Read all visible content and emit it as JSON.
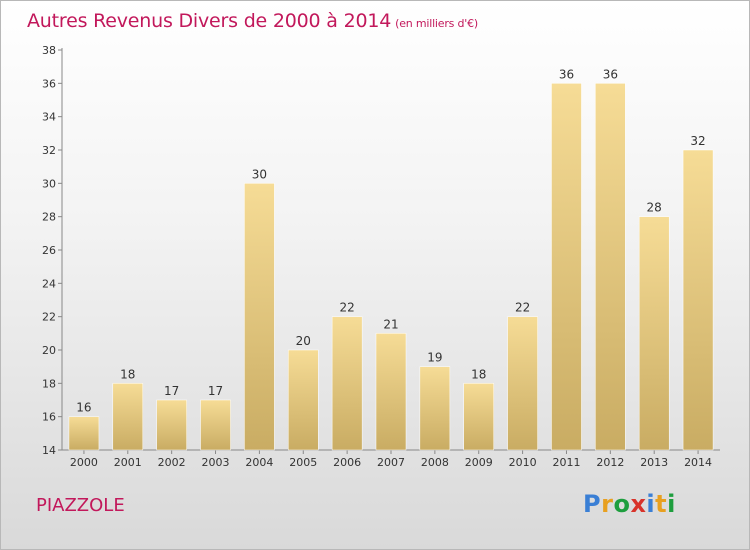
{
  "chart_data": {
    "type": "bar",
    "title": "Autres Revenus Divers de 2000 à 2014",
    "subtitle": "(en milliers d'€)",
    "categories": [
      "2000",
      "2001",
      "2002",
      "2003",
      "2004",
      "2005",
      "2006",
      "2007",
      "2008",
      "2009",
      "2010",
      "2011",
      "2012",
      "2013",
      "2014"
    ],
    "values": [
      16,
      18,
      17,
      17,
      30,
      20,
      22,
      21,
      19,
      18,
      22,
      36,
      36,
      28,
      32
    ],
    "ylim": [
      14,
      38
    ],
    "yticks": [
      14,
      16,
      18,
      20,
      22,
      24,
      26,
      28,
      30,
      32,
      34,
      36,
      38
    ],
    "grid": false,
    "bar_color": "#e8cc85"
  },
  "footer": {
    "commune": "PIAZZOLE",
    "logo": [
      "P",
      "r",
      "o",
      "x",
      "i",
      "t",
      "i"
    ]
  }
}
